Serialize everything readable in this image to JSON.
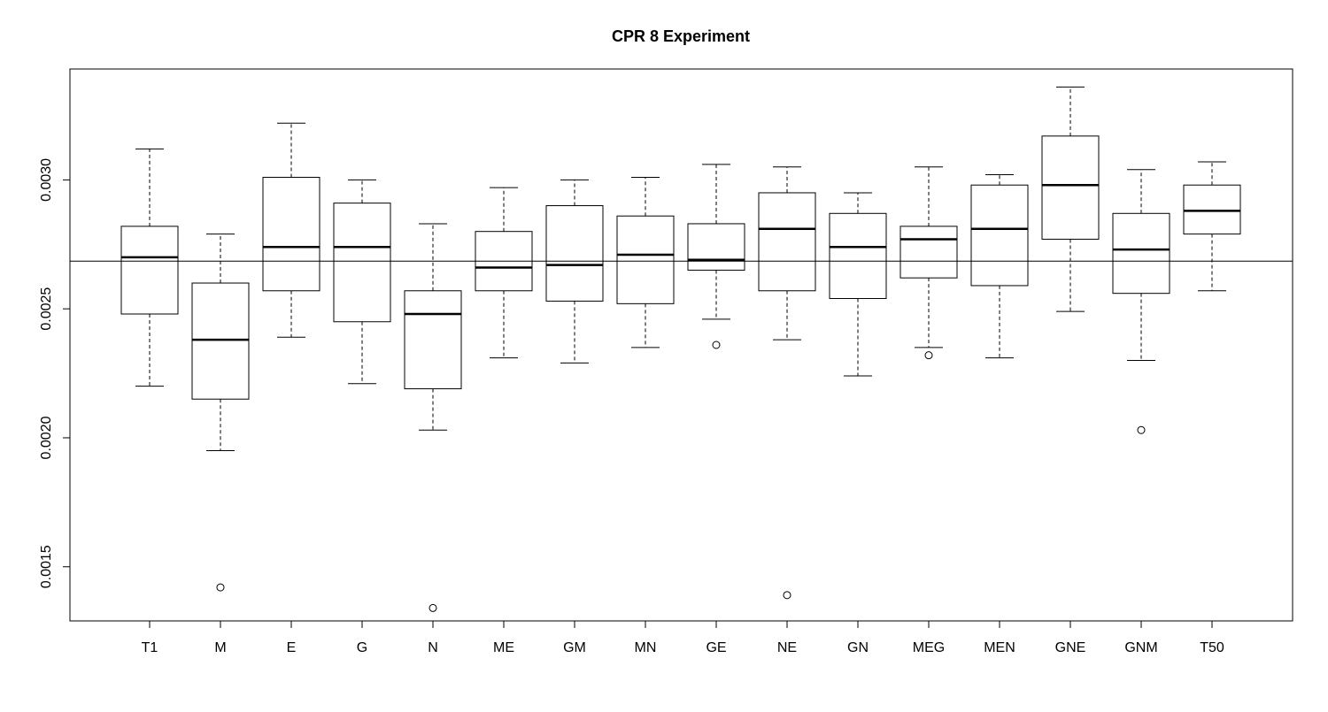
{
  "chart_data": {
    "type": "box",
    "title": "CPR 8 Experiment",
    "xlabel": "",
    "ylabel": "",
    "ylim": [
      0.00129,
      0.00343
    ],
    "yticks": [
      "0.0015",
      "0.0020",
      "0.0025",
      "0.0030"
    ],
    "reference_line": 0.002685,
    "grid": false,
    "legend": "none",
    "categories": [
      "T1",
      "M",
      "E",
      "G",
      "N",
      "ME",
      "GM",
      "MN",
      "GE",
      "NE",
      "GN",
      "MEG",
      "MEN",
      "GNE",
      "GNM",
      "T50"
    ],
    "boxes": [
      {
        "category": "T1",
        "whisker_low": 0.0022,
        "q1": 0.00248,
        "median": 0.0027,
        "q3": 0.00282,
        "whisker_high": 0.00312,
        "outliers": []
      },
      {
        "category": "M",
        "whisker_low": 0.00195,
        "q1": 0.00215,
        "median": 0.00238,
        "q3": 0.0026,
        "whisker_high": 0.00279,
        "outliers": [
          0.00142
        ]
      },
      {
        "category": "E",
        "whisker_low": 0.00239,
        "q1": 0.00257,
        "median": 0.00274,
        "q3": 0.00301,
        "whisker_high": 0.00322,
        "outliers": []
      },
      {
        "category": "G",
        "whisker_low": 0.00221,
        "q1": 0.00245,
        "median": 0.00274,
        "q3": 0.00291,
        "whisker_high": 0.003,
        "outliers": []
      },
      {
        "category": "N",
        "whisker_low": 0.00203,
        "q1": 0.00219,
        "median": 0.00248,
        "q3": 0.00257,
        "whisker_high": 0.00283,
        "outliers": [
          0.00134
        ]
      },
      {
        "category": "ME",
        "whisker_low": 0.00231,
        "q1": 0.00257,
        "median": 0.00266,
        "q3": 0.0028,
        "whisker_high": 0.00297,
        "outliers": []
      },
      {
        "category": "GM",
        "whisker_low": 0.00229,
        "q1": 0.00253,
        "median": 0.00267,
        "q3": 0.0029,
        "whisker_high": 0.003,
        "outliers": []
      },
      {
        "category": "MN",
        "whisker_low": 0.00235,
        "q1": 0.00252,
        "median": 0.00271,
        "q3": 0.00286,
        "whisker_high": 0.00301,
        "outliers": []
      },
      {
        "category": "GE",
        "whisker_low": 0.00246,
        "q1": 0.00265,
        "median": 0.00269,
        "q3": 0.00283,
        "whisker_high": 0.00306,
        "outliers": [
          0.00236
        ]
      },
      {
        "category": "NE",
        "whisker_low": 0.00238,
        "q1": 0.00257,
        "median": 0.00281,
        "q3": 0.00295,
        "whisker_high": 0.00305,
        "outliers": [
          0.00139
        ]
      },
      {
        "category": "GN",
        "whisker_low": 0.00224,
        "q1": 0.00254,
        "median": 0.00274,
        "q3": 0.00287,
        "whisker_high": 0.00295,
        "outliers": []
      },
      {
        "category": "MEG",
        "whisker_low": 0.00235,
        "q1": 0.00262,
        "median": 0.00277,
        "q3": 0.00282,
        "whisker_high": 0.00305,
        "outliers": [
          0.00232
        ]
      },
      {
        "category": "MEN",
        "whisker_low": 0.00231,
        "q1": 0.00259,
        "median": 0.00281,
        "q3": 0.00298,
        "whisker_high": 0.00302,
        "outliers": []
      },
      {
        "category": "GNE",
        "whisker_low": 0.00249,
        "q1": 0.00277,
        "median": 0.00298,
        "q3": 0.00317,
        "whisker_high": 0.00336,
        "outliers": []
      },
      {
        "category": "GNM",
        "whisker_low": 0.0023,
        "q1": 0.00256,
        "median": 0.00273,
        "q3": 0.00287,
        "whisker_high": 0.00304,
        "outliers": [
          0.00203
        ]
      },
      {
        "category": "T50",
        "whisker_low": 0.00257,
        "q1": 0.00279,
        "median": 0.00288,
        "q3": 0.00298,
        "whisker_high": 0.00307,
        "outliers": []
      }
    ]
  }
}
